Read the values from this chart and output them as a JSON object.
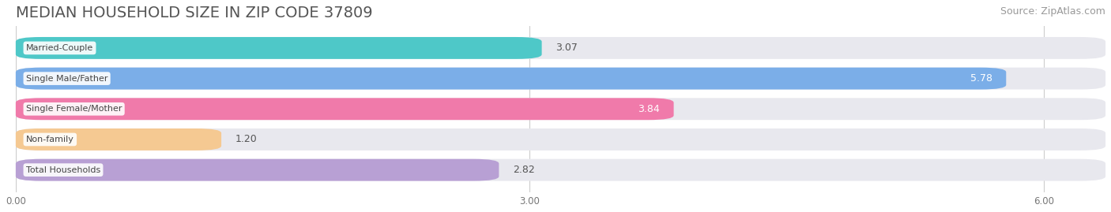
{
  "title": "MEDIAN HOUSEHOLD SIZE IN ZIP CODE 37809",
  "source": "Source: ZipAtlas.com",
  "categories": [
    "Married-Couple",
    "Single Male/Father",
    "Single Female/Mother",
    "Non-family",
    "Total Households"
  ],
  "values": [
    3.07,
    5.78,
    3.84,
    1.2,
    2.82
  ],
  "bar_colors": [
    "#4ec8c8",
    "#7baee8",
    "#f07aaa",
    "#f5c992",
    "#b8a0d4"
  ],
  "value_inside": [
    false,
    true,
    true,
    false,
    false
  ],
  "xlim": [
    0,
    6.36
  ],
  "xticks": [
    0.0,
    3.0,
    6.0
  ],
  "xtick_labels": [
    "0.00",
    "3.00",
    "6.00"
  ],
  "background_color": "#ffffff",
  "bar_background": "#e8e8ee",
  "title_color": "#555555",
  "source_color": "#999999",
  "title_fontsize": 14,
  "source_fontsize": 9,
  "bar_height": 0.72,
  "bar_label_fontsize": 9,
  "label_text_color": "#444444",
  "inside_label_color": "#ffffff",
  "value_outside_color": "#555555"
}
